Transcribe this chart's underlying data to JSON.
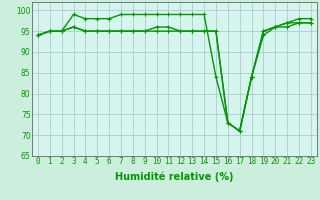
{
  "xlabel": "Humidité relative (%)",
  "background_color": "#cceedd",
  "plot_bg_color": "#d6f5ee",
  "grid_color": "#aacccc",
  "line_color": "#009900",
  "hours": [
    0,
    1,
    2,
    3,
    4,
    5,
    6,
    7,
    8,
    9,
    10,
    11,
    12,
    13,
    14,
    15,
    16,
    17,
    18,
    19,
    20,
    21,
    22,
    23
  ],
  "line1": [
    94,
    95,
    95,
    99,
    98,
    98,
    98,
    99,
    99,
    99,
    99,
    99,
    99,
    99,
    99,
    84,
    73,
    71,
    84,
    95,
    96,
    97,
    98,
    98
  ],
  "line2": [
    94,
    95,
    95,
    96,
    95,
    95,
    95,
    95,
    95,
    95,
    96,
    96,
    95,
    95,
    95,
    95,
    73,
    71,
    84,
    95,
    96,
    97,
    97,
    97
  ],
  "line3": [
    94,
    95,
    95,
    96,
    95,
    95,
    95,
    95,
    95,
    95,
    95,
    95,
    95,
    95,
    95,
    95,
    73,
    71,
    84,
    94,
    96,
    96,
    97,
    97
  ],
  "ylim": [
    65,
    102
  ],
  "yticks": [
    65,
    70,
    75,
    80,
    85,
    90,
    95,
    100
  ],
  "marker": "+",
  "marker_size": 3.5,
  "line_width": 1.0,
  "tick_fontsize": 5.5,
  "xlabel_fontsize": 7
}
